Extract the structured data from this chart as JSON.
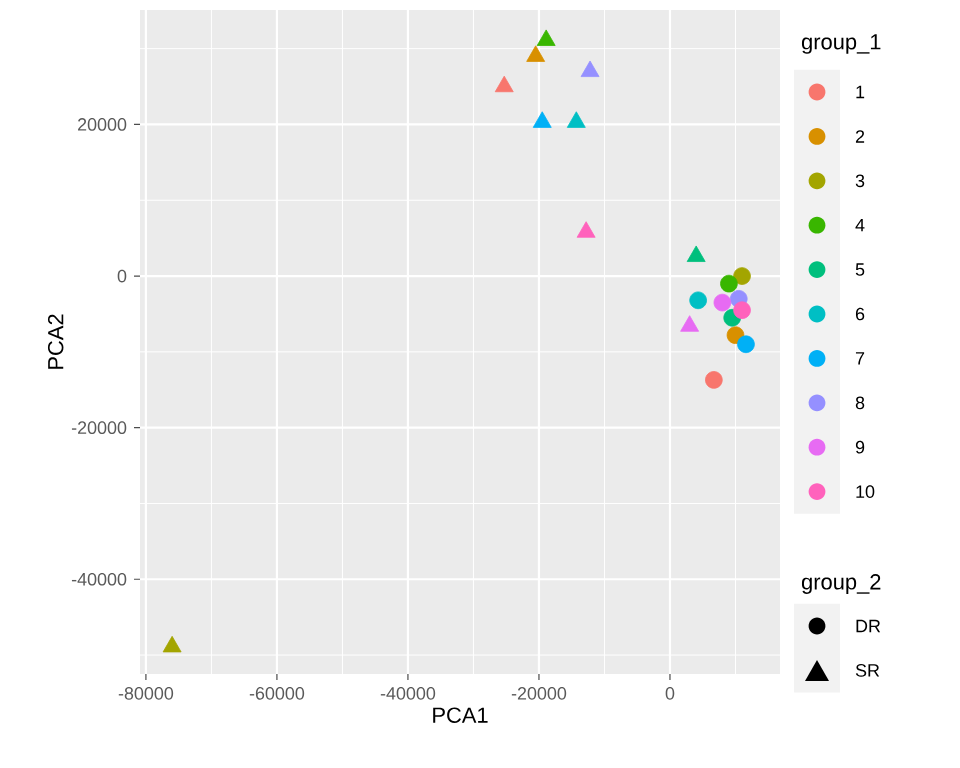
{
  "chart_data": {
    "type": "scatter",
    "xlabel": "PCA1",
    "ylabel": "PCA2",
    "legend_title": "group_1",
    "xlim": [
      -80900,
      16800
    ],
    "ylim": [
      -52500,
      35100
    ],
    "xticks": [
      -80000,
      -60000,
      -40000,
      -20000,
      0
    ],
    "yticks": [
      -40000,
      -20000,
      0,
      20000
    ],
    "grid": true,
    "legend": "right",
    "annotations": [
      "group_2",
      "DR",
      "SR"
    ],
    "series": [
      {
        "name": "1",
        "color": "#F8766D",
        "marker": "circle",
        "x": [
          6700
        ],
        "values": [
          -13700
        ]
      },
      {
        "name": "2",
        "color": "#D89000",
        "marker": "circle",
        "x": [
          10000
        ],
        "values": [
          -7800
        ]
      },
      {
        "name": "3",
        "color": "#A3A500",
        "marker": "circle",
        "x": [
          11000
        ],
        "values": [
          0
        ]
      },
      {
        "name": "4",
        "color": "#39B600",
        "marker": "circle",
        "x": [
          9000
        ],
        "values": [
          -1000
        ]
      },
      {
        "name": "5",
        "color": "#00BF7D",
        "marker": "circle",
        "x": [
          9500
        ],
        "values": [
          -5500
        ]
      },
      {
        "name": "6",
        "color": "#00BFC4",
        "marker": "circle",
        "x": [
          4300
        ],
        "values": [
          -3200
        ]
      },
      {
        "name": "7",
        "color": "#00B0F6",
        "marker": "circle",
        "x": [
          11600
        ],
        "values": [
          -9000
        ]
      },
      {
        "name": "8",
        "color": "#9590FF",
        "marker": "circle",
        "x": [
          10500
        ],
        "values": [
          -3000
        ]
      },
      {
        "name": "9",
        "color": "#E76BF3",
        "marker": "circle",
        "x": [
          8000
        ],
        "values": [
          -3500
        ]
      },
      {
        "name": "10",
        "color": "#FF62BC",
        "marker": "circle",
        "x": [
          11000
        ],
        "values": [
          -4500
        ]
      },
      {
        "color": "#F8766D",
        "marker": "triangle",
        "x": [
          -25300
        ],
        "values": [
          25000
        ]
      },
      {
        "color": "#D89000",
        "marker": "triangle",
        "x": [
          -20500
        ],
        "values": [
          29000
        ]
      },
      {
        "color": "#A3A500",
        "marker": "triangle",
        "x": [
          -76000
        ],
        "values": [
          -48900
        ]
      },
      {
        "color": "#39B600",
        "marker": "triangle",
        "x": [
          -18900
        ],
        "values": [
          31100
        ]
      },
      {
        "color": "#00BF7D",
        "marker": "triangle",
        "x": [
          4000
        ],
        "values": [
          2600
        ]
      },
      {
        "color": "#00BFC4",
        "marker": "triangle",
        "x": [
          -14300
        ],
        "values": [
          20300
        ]
      },
      {
        "color": "#00B0F6",
        "marker": "triangle",
        "x": [
          -19500
        ],
        "values": [
          20300
        ]
      },
      {
        "color": "#9590FF",
        "marker": "triangle",
        "x": [
          -12200
        ],
        "values": [
          27000
        ]
      },
      {
        "color": "#E76BF3",
        "marker": "triangle",
        "x": [
          3000
        ],
        "values": [
          -6600
        ]
      },
      {
        "color": "#FF62BC",
        "marker": "triangle",
        "x": [
          -12800
        ],
        "values": [
          5800
        ]
      }
    ]
  }
}
